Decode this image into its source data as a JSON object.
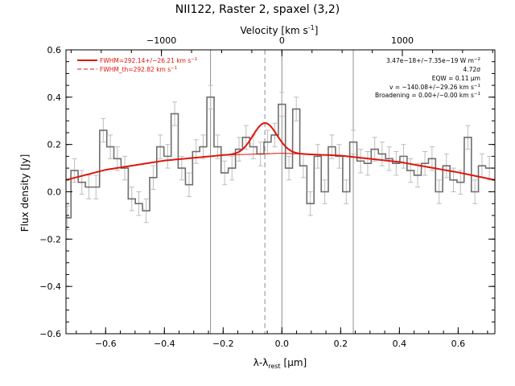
{
  "chart_data": {
    "type": "line",
    "title": "NII122, Raster 2, spaxel (3,2)",
    "xlabel_main": "λ-λ",
    "xlabel_sub": "rest",
    "xlabel_unit_open": " [",
    "xlabel_unit_mu": "μ",
    "xlabel_unit_rest": "m]",
    "ylabel": "Flux density [Jy]",
    "top_xlabel": "Velocity [km s",
    "top_xlabel_exp": "-1",
    "top_xlabel_close": "]",
    "xlim": [
      -0.735,
      0.725
    ],
    "ylim": [
      -0.6,
      0.6
    ],
    "top_ticks": [
      {
        "label": "−1000",
        "x": -0.41
      },
      {
        "label": "0",
        "x": 0.0
      },
      {
        "label": "1000",
        "x": 0.41
      }
    ],
    "x_ticks": [
      -0.6,
      -0.4,
      -0.2,
      0.0,
      0.2,
      0.4,
      0.6
    ],
    "x_tick_labels": [
      "−0.6",
      "−0.4",
      "−0.2",
      "0.0",
      "0.2",
      "0.4",
      "0.6"
    ],
    "y_ticks": [
      -0.6,
      -0.4,
      -0.2,
      0.0,
      0.2,
      0.4,
      0.6
    ],
    "y_tick_labels": [
      "−0.6",
      "−0.4",
      "−0.2",
      "0.0",
      "0.2",
      "0.4",
      "0.6"
    ],
    "vlines": [
      -0.243,
      -0.058,
      0.0,
      0.243
    ],
    "spectrum": {
      "name": "observed",
      "bin_width": 0.0243,
      "x": [
        -0.73,
        -0.706,
        -0.681,
        -0.657,
        -0.633,
        -0.608,
        -0.584,
        -0.56,
        -0.535,
        -0.511,
        -0.487,
        -0.462,
        -0.438,
        -0.414,
        -0.389,
        -0.365,
        -0.341,
        -0.316,
        -0.292,
        -0.268,
        -0.243,
        -0.219,
        -0.195,
        -0.17,
        -0.146,
        -0.122,
        -0.097,
        -0.073,
        -0.049,
        -0.024,
        0.0,
        0.024,
        0.049,
        0.073,
        0.097,
        0.122,
        0.146,
        0.17,
        0.195,
        0.219,
        0.243,
        0.268,
        0.292,
        0.316,
        0.341,
        0.365,
        0.389,
        0.414,
        0.438,
        0.462,
        0.487,
        0.511,
        0.535,
        0.56,
        0.584,
        0.608,
        0.633,
        0.657,
        0.681,
        0.706
      ],
      "y": [
        -0.11,
        0.09,
        0.04,
        0.02,
        0.02,
        0.26,
        0.19,
        0.14,
        0.1,
        -0.03,
        -0.05,
        -0.08,
        0.06,
        0.19,
        0.15,
        0.33,
        0.1,
        0.03,
        0.17,
        0.19,
        0.4,
        0.19,
        0.08,
        0.1,
        0.18,
        0.23,
        0.19,
        0.16,
        0.21,
        0.24,
        0.37,
        0.1,
        0.35,
        0.11,
        -0.05,
        0.15,
        0.0,
        0.19,
        0.15,
        0.0,
        0.21,
        0.13,
        0.12,
        0.18,
        0.16,
        0.14,
        0.12,
        0.15,
        0.09,
        0.07,
        0.12,
        0.14,
        0.0,
        0.11,
        0.05,
        0.04,
        0.23,
        0.0,
        0.11,
        0.1
      ],
      "err": 0.05,
      "color": "#6e6e6e"
    },
    "fit": {
      "name": "fit",
      "color": "#e0140a",
      "baseline_x": [
        -0.735,
        -0.6,
        -0.4,
        -0.2,
        0.0,
        0.2,
        0.4,
        0.6,
        0.725
      ],
      "baseline_y": [
        0.05,
        0.093,
        0.132,
        0.155,
        0.163,
        0.153,
        0.126,
        0.082,
        0.05
      ],
      "gauss_center": -0.058,
      "gauss_amp": 0.13,
      "gauss_sigma": 0.0405,
      "continuum_color": "#e0140a"
    },
    "legend": [
      {
        "label": "FWHM=292.14+/−26.21 km s",
        "exp": "−1",
        "style": "solid"
      },
      {
        "label": "FWHM_th=292.82 km s",
        "exp": "−1",
        "style": "dashed"
      }
    ],
    "annotations": {
      "flux": "3.47e−18+/−7.35e−19 W m",
      "flux_exp": "−2",
      "sigma": "4.72σ",
      "eqw": "EQW = 0.11 μm",
      "vel": "v = −140.08+/−29.26 km s",
      "vel_exp": "−1",
      "broad": "Broadening = 0.00+/−0.00 km s",
      "broad_exp": "−1"
    }
  }
}
